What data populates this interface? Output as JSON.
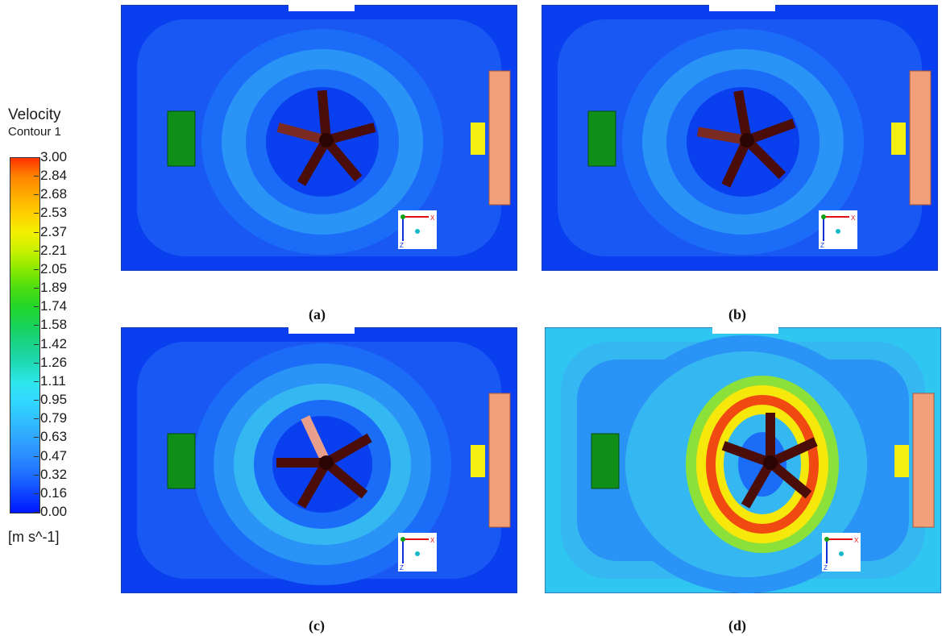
{
  "legend": {
    "title": "Velocity",
    "subtitle": "Contour 1",
    "units": "[m s^-1]",
    "ticks": [
      "3.00",
      "2.84",
      "2.68",
      "2.53",
      "2.37",
      "2.21",
      "2.05",
      "1.89",
      "1.74",
      "1.58",
      "1.42",
      "1.26",
      "1.11",
      "0.95",
      "0.79",
      "0.63",
      "0.47",
      "0.32",
      "0.16",
      "0.00"
    ]
  },
  "panels": [
    {
      "caption": "(a)",
      "variant": "low"
    },
    {
      "caption": "(b)",
      "variant": "low"
    },
    {
      "caption": "(c)",
      "variant": "mid"
    },
    {
      "caption": "(d)",
      "variant": "high"
    }
  ],
  "axis_labels": {
    "x": "X",
    "z": "Z"
  },
  "colors": {
    "bg_low": "#0a3ff0",
    "band1": "#1b6cf6",
    "band2": "#2a93f6",
    "band3": "#35b8f2",
    "green_obj": "#0f8f1a",
    "yellow_obj": "#f4ef10",
    "salmon_obj": "#f2a07a",
    "fan": "#4a0d08"
  }
}
